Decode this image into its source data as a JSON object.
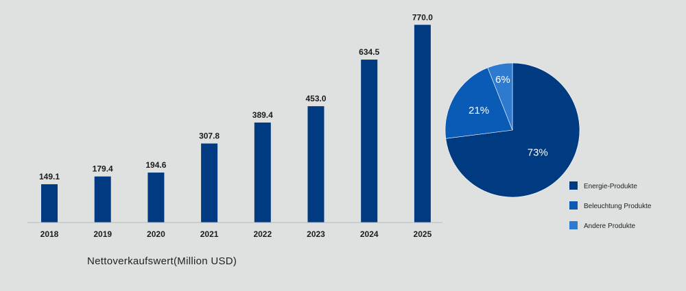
{
  "chart_data": [
    {
      "type": "bar",
      "categories": [
        "2018",
        "2019",
        "2020",
        "2021",
        "2022",
        "2023",
        "2024",
        "2025"
      ],
      "values": [
        149.1,
        179.4,
        194.6,
        307.8,
        389.4,
        453.0,
        634.5,
        770.0
      ],
      "value_labels": [
        "149.1",
        "179.4",
        "194.6",
        "307.8",
        "389.4",
        "453.0",
        "634.5",
        "770.0"
      ],
      "title": "",
      "xlabel": "Nettoverkaufswert(Million USD)",
      "ylabel": "",
      "ylim": [
        0,
        800
      ],
      "grid": false,
      "color": "#003a80"
    },
    {
      "type": "pie",
      "labels": [
        "Energie-Produkte",
        "Beleuchtung Produkte",
        "Andere Produkte"
      ],
      "values": [
        73,
        21,
        6
      ],
      "value_labels": [
        "73%",
        "21%",
        "6%"
      ],
      "colors": [
        "#003a80",
        "#0a5bb5",
        "#2e7ad1"
      ],
      "legend_position": "bottom-right"
    }
  ]
}
